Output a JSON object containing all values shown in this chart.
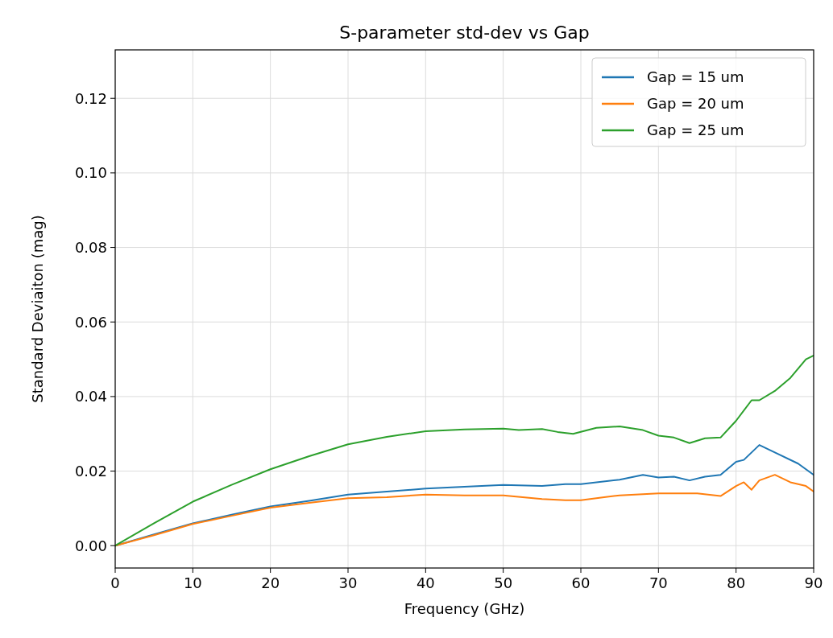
{
  "chart_data": {
    "type": "line",
    "title": "S-parameter std-dev vs Gap",
    "xlabel": "Frequency (GHz)",
    "ylabel": "Standard Deviaiton (mag)",
    "xlim": [
      0,
      90
    ],
    "ylim": [
      -0.006,
      0.133
    ],
    "xticks": [
      0,
      10,
      20,
      30,
      40,
      50,
      60,
      70,
      80,
      90
    ],
    "yticks": [
      {
        "value": 0,
        "label": "0.00"
      },
      {
        "value": 0.02,
        "label": "0.02"
      },
      {
        "value": 0.04,
        "label": "0.04"
      },
      {
        "value": 0.06,
        "label": "0.06"
      },
      {
        "value": 0.08,
        "label": "0.08"
      },
      {
        "value": 0.1,
        "label": "0.10"
      },
      {
        "value": 0.12,
        "label": "0.12"
      }
    ],
    "grid": true,
    "legend": "top right",
    "series": [
      {
        "name": "Gap = 15 um",
        "color": "#1f77b4",
        "x": [
          0,
          5,
          10,
          15,
          20,
          25,
          30,
          35,
          40,
          45,
          50,
          55,
          58,
          60,
          65,
          68,
          70,
          72,
          74,
          76,
          78,
          80,
          81,
          83,
          85,
          88,
          90
        ],
        "values": [
          0,
          0.003,
          0.006,
          0.0083,
          0.0105,
          0.012,
          0.0137,
          0.0145,
          0.0153,
          0.0158,
          0.0163,
          0.016,
          0.0165,
          0.0165,
          0.0177,
          0.019,
          0.0183,
          0.0185,
          0.0175,
          0.0185,
          0.019,
          0.0225,
          0.023,
          0.027,
          0.025,
          0.022,
          0.019
        ]
      },
      {
        "name": "Gap = 20 um",
        "color": "#ff7f0e",
        "x": [
          0,
          5,
          10,
          15,
          20,
          25,
          30,
          35,
          40,
          45,
          50,
          55,
          58,
          60,
          63,
          65,
          70,
          75,
          78,
          80,
          81,
          82,
          83,
          85,
          87,
          89,
          90
        ],
        "values": [
          0,
          0.0028,
          0.0058,
          0.008,
          0.0102,
          0.0115,
          0.0127,
          0.013,
          0.0137,
          0.0135,
          0.0135,
          0.0125,
          0.0122,
          0.0122,
          0.013,
          0.0135,
          0.014,
          0.014,
          0.0133,
          0.016,
          0.017,
          0.015,
          0.0175,
          0.019,
          0.017,
          0.016,
          0.0145
        ]
      },
      {
        "name": "Gap = 25 um",
        "color": "#2ca02c",
        "x": [
          0,
          5,
          10,
          15,
          20,
          25,
          30,
          35,
          40,
          45,
          50,
          52,
          55,
          57,
          59,
          62,
          65,
          68,
          70,
          72,
          74,
          76,
          78,
          80,
          82,
          83,
          85,
          87,
          89,
          90
        ],
        "values": [
          0,
          0.006,
          0.0118,
          0.0163,
          0.0205,
          0.024,
          0.0272,
          0.0292,
          0.0307,
          0.0312,
          0.0314,
          0.031,
          0.0313,
          0.0305,
          0.03,
          0.0316,
          0.032,
          0.031,
          0.0295,
          0.029,
          0.0275,
          0.0288,
          0.029,
          0.0335,
          0.039,
          0.039,
          0.0415,
          0.045,
          0.05,
          0.051
        ]
      }
    ]
  }
}
